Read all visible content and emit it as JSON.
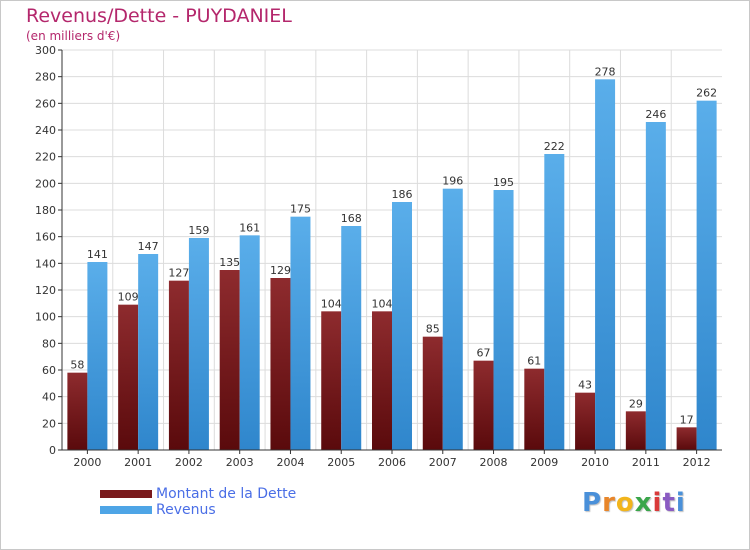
{
  "header": {
    "title": "Revenus/Dette - PUYDANIEL",
    "subtitle": "(en milliers d'€)"
  },
  "colors": {
    "dette": "#7a1a1c",
    "revenus": "#4ea5e6",
    "title": "#b4276c",
    "legend_text": "#4a6ee6"
  },
  "legend": [
    {
      "label": "Montant de la Dette",
      "color": "#7a1a1c"
    },
    {
      "label": "Revenus",
      "color": "#4ea5e6"
    }
  ],
  "logo": {
    "text": "Proxiti",
    "letters": [
      {
        "ch": "P",
        "color": "#4a90d9"
      },
      {
        "ch": "r",
        "color": "#e8862a"
      },
      {
        "ch": "o",
        "color": "#f2b51c"
      },
      {
        "ch": "x",
        "color": "#3aa64a"
      },
      {
        "ch": "i",
        "color": "#d93a3a"
      },
      {
        "ch": "t",
        "color": "#8a5bc2"
      },
      {
        "ch": "i",
        "color": "#4a90d9"
      }
    ]
  },
  "chart_data": {
    "type": "bar",
    "categories": [
      "2000",
      "2001",
      "2002",
      "2003",
      "2004",
      "2005",
      "2006",
      "2007",
      "2008",
      "2009",
      "2010",
      "2011",
      "2012"
    ],
    "series": [
      {
        "name": "Montant de la Dette",
        "values": [
          58,
          109,
          127,
          135,
          129,
          104,
          104,
          85,
          67,
          61,
          43,
          29,
          17
        ]
      },
      {
        "name": "Revenus",
        "values": [
          141,
          147,
          159,
          161,
          175,
          168,
          186,
          196,
          195,
          222,
          278,
          246,
          262
        ]
      }
    ],
    "title": "Revenus/Dette - PUYDANIEL",
    "ylabel": "(en milliers d'€)",
    "ylim": [
      0,
      300
    ],
    "yticks": [
      0,
      20,
      40,
      60,
      80,
      100,
      120,
      140,
      160,
      180,
      200,
      220,
      240,
      260,
      280,
      300
    ],
    "grid": true,
    "legend_position": "bottom-left"
  }
}
